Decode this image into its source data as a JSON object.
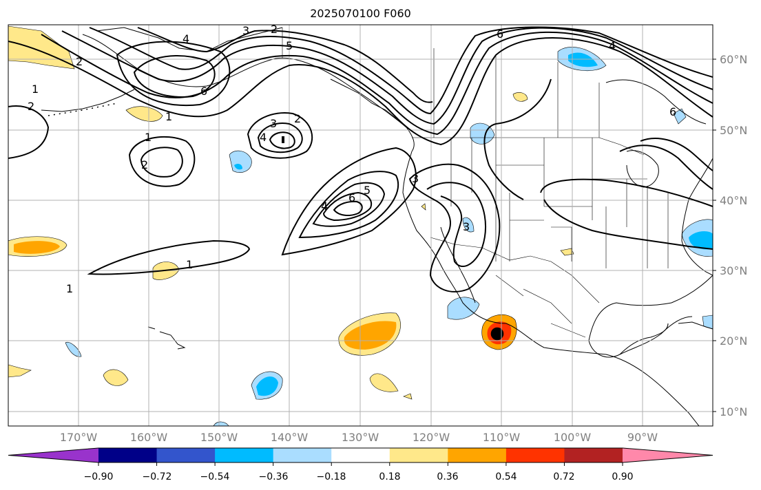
{
  "title": "2025070100 F060",
  "map": {
    "lat_labels": [
      "60°N",
      "50°N",
      "40°N",
      "30°N",
      "20°N",
      "10°N"
    ],
    "lon_labels": [
      "170°W",
      "160°W",
      "150°W",
      "140°W",
      "130°W",
      "120°W",
      "110°W",
      "100°W",
      "90°W"
    ],
    "contour_labels": [
      "1",
      "2",
      "3",
      "4",
      "5",
      "6"
    ],
    "grid": true
  },
  "colorbar": {
    "ticks": [
      "−0.90",
      "−0.72",
      "−0.54",
      "−0.36",
      "−0.18",
      "0.18",
      "0.36",
      "0.54",
      "0.72",
      "0.90"
    ],
    "colors": [
      "#9933cc",
      "#000088",
      "#3355cc",
      "#00bbff",
      "#aaddff",
      "#ffffff",
      "#ffe88a",
      "#ffa500",
      "#ff3300",
      "#b22222",
      "#ff88aa"
    ]
  }
}
